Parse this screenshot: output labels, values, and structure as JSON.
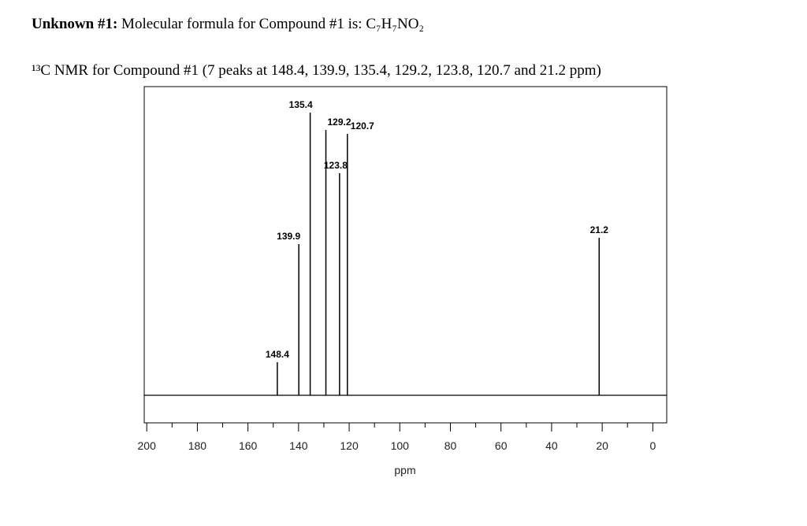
{
  "header": {
    "label": "Unknown #1:",
    "text": "Molecular formula for Compound #1 is: C₇H₇NO₂"
  },
  "chart_data": {
    "type": "spectrum",
    "title": "¹³C NMR for Compound #1 (7 peaks at 148.4, 139.9, 135.4, 129.2, 123.8, 120.7 and 21.2 ppm)",
    "x_label": "ppm",
    "xlim": [
      201,
      -5.5
    ],
    "ylim": [
      -35,
      392
    ],
    "xticks": [
      200,
      180,
      160,
      140,
      120,
      100,
      80,
      60,
      40,
      20,
      0
    ],
    "xminor_ticks": [
      190,
      170,
      150,
      130,
      110,
      90,
      70,
      50,
      30,
      10
    ],
    "series": [
      {
        "name": "peaks",
        "color": "#000000",
        "x": [
          148.4,
          139.9,
          135.4,
          129.2,
          123.8,
          120.7,
          21.2
        ],
        "values": [
          42,
          192,
          359,
          337,
          282,
          332,
          200
        ]
      }
    ]
  }
}
